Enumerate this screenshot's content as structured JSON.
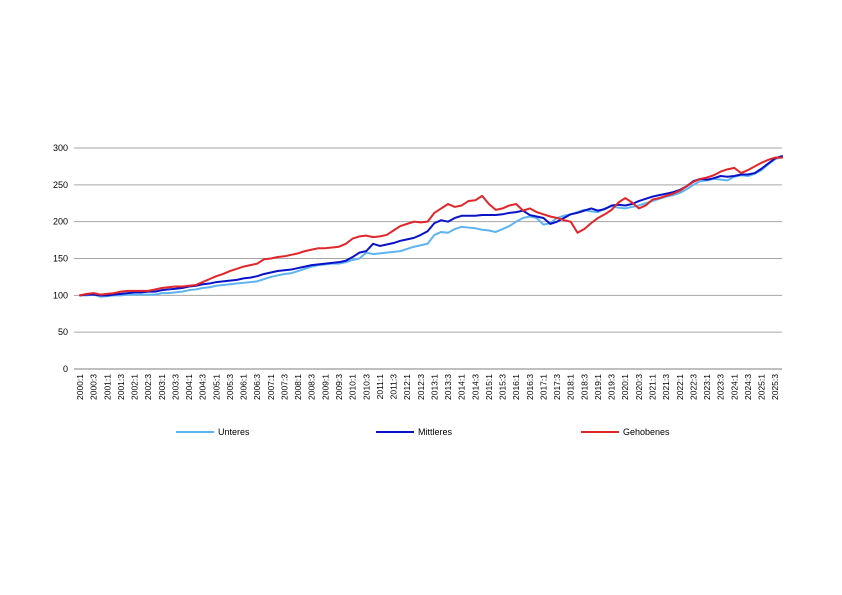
{
  "chart_data": {
    "type": "line",
    "title": "",
    "xlabel": "",
    "ylabel": "",
    "ylim": [
      0,
      300
    ],
    "yticks": [
      0,
      50,
      100,
      150,
      200,
      250,
      300
    ],
    "grid": "horizontal",
    "legend_position": "bottom",
    "x": [
      "2000:1",
      "2000:2",
      "2000:3",
      "2000:4",
      "2001:1",
      "2001:2",
      "2001:3",
      "2001:4",
      "2002:1",
      "2002:2",
      "2002:3",
      "2002:4",
      "2003:1",
      "2003:2",
      "2003:3",
      "2003:4",
      "2004:1",
      "2004:2",
      "2004:3",
      "2004:4",
      "2005:1",
      "2005:2",
      "2005:3",
      "2005:4",
      "2006:1",
      "2006:2",
      "2006:3",
      "2006:4",
      "2007:1",
      "2007:2",
      "2007:3",
      "2007:4",
      "2008:1",
      "2008:2",
      "2008:3",
      "2008:4",
      "2009:1",
      "2009:2",
      "2009:3",
      "2009:4",
      "2010:1",
      "2010:2",
      "2010:3",
      "2010:4",
      "2011:1",
      "2011:2",
      "2011:3",
      "2011:4",
      "2012:1",
      "2012:2",
      "2012:3",
      "2012:4",
      "2013:1",
      "2013:2",
      "2013:3",
      "2013:4",
      "2014:1",
      "2014:2",
      "2014:3",
      "2014:4",
      "2015:1",
      "2015:2",
      "2015:3",
      "2015:4",
      "2016:1",
      "2016:2",
      "2016:3",
      "2016:4",
      "2017:1",
      "2017:2",
      "2017:3",
      "2017:4",
      "2018:1",
      "2018:2",
      "2018:3",
      "2018:4",
      "2019:1",
      "2019:2",
      "2019:3",
      "2019:4",
      "2020:1",
      "2020:2",
      "2020:3",
      "2020:4",
      "2021:1",
      "2021:2",
      "2021:3",
      "2021:4",
      "2022:1",
      "2022:2",
      "2022:3",
      "2022:4",
      "2023:1",
      "2023:2",
      "2023:3",
      "2023:4",
      "2024:1",
      "2024:2",
      "2024:3",
      "2024:4",
      "2025:1",
      "2025:2",
      "2025:3",
      "2025:4"
    ],
    "tick_labels": [
      "2000:1",
      "2000:3",
      "2001:1",
      "2001:3",
      "2002:1",
      "2002:3",
      "2003:1",
      "2003:3",
      "2004:1",
      "2004:3",
      "2005:1",
      "2005:3",
      "2006:1",
      "2006:3",
      "2007:1",
      "2007:3",
      "2008:1",
      "2008:3",
      "2009:1",
      "2009:3",
      "2010:1",
      "2010:3",
      "2011:1",
      "2011:3",
      "2012:1",
      "2012:3",
      "2013:1",
      "2013:3",
      "2014:1",
      "2014:3",
      "2015:1",
      "2015:3",
      "2016:1",
      "2016:3",
      "2017:1",
      "2017:3",
      "2018:1",
      "2018:3",
      "2019:1",
      "2019:3",
      "2020:1",
      "2020:3",
      "2021:1",
      "2021:3",
      "2022:1",
      "2022:3",
      "2023:1",
      "2023:3",
      "2024:1",
      "2024:3",
      "2025:1",
      "2025:3"
    ],
    "series": [
      {
        "name": "Unteres",
        "color": "#5fb4f0",
        "values": [
          100,
          100,
          101,
          98,
          99,
          100,
          100,
          101,
          101,
          101,
          101,
          101,
          103,
          103,
          104,
          105,
          107,
          108,
          110,
          111,
          113,
          114,
          115,
          116,
          117,
          118,
          119,
          122,
          125,
          127,
          129,
          130,
          133,
          136,
          139,
          141,
          142,
          143,
          143,
          145,
          148,
          150,
          158,
          156,
          157,
          158,
          159,
          160,
          163,
          166,
          168,
          170,
          182,
          186,
          185,
          190,
          193,
          192,
          191,
          189,
          188,
          186,
          190,
          194,
          200,
          205,
          207,
          205,
          196,
          198,
          205,
          208,
          210,
          213,
          216,
          214,
          213,
          218,
          221,
          219,
          218,
          220,
          222,
          225,
          228,
          231,
          234,
          236,
          239,
          244,
          250,
          255,
          256,
          258,
          257,
          256,
          261,
          263,
          262,
          265,
          270,
          278,
          285,
          288
        ]
      },
      {
        "name": "Mittleres",
        "color": "#0a12c8",
        "values": [
          100,
          101,
          101,
          100,
          100,
          101,
          102,
          103,
          104,
          104,
          105,
          105,
          107,
          108,
          109,
          110,
          112,
          113,
          115,
          116,
          118,
          119,
          120,
          121,
          123,
          124,
          126,
          129,
          131,
          133,
          134,
          135,
          137,
          139,
          141,
          142,
          143,
          144,
          145,
          147,
          152,
          158,
          160,
          170,
          167,
          169,
          171,
          174,
          176,
          178,
          182,
          187,
          198,
          202,
          200,
          205,
          208,
          208,
          208,
          209,
          209,
          209,
          210,
          212,
          213,
          215,
          209,
          207,
          205,
          197,
          200,
          205,
          210,
          212,
          215,
          218,
          215,
          217,
          222,
          223,
          222,
          224,
          228,
          231,
          234,
          236,
          238,
          240,
          243,
          248,
          255,
          258,
          257,
          259,
          262,
          261,
          262,
          264,
          264,
          266,
          272,
          279,
          286,
          289
        ]
      },
      {
        "name": "Gehobenes",
        "color": "#e0262a",
        "values": [
          100,
          102,
          103,
          101,
          102,
          103,
          105,
          106,
          106,
          106,
          106,
          108,
          110,
          111,
          112,
          112,
          113,
          114,
          118,
          122,
          126,
          129,
          133,
          136,
          139,
          141,
          143,
          149,
          150,
          152,
          153,
          155,
          157,
          160,
          162,
          164,
          164,
          165,
          166,
          170,
          177,
          180,
          181,
          179,
          180,
          182,
          188,
          194,
          197,
          200,
          199,
          200,
          212,
          218,
          224,
          220,
          222,
          228,
          229,
          235,
          224,
          216,
          218,
          222,
          224,
          215,
          218,
          213,
          210,
          207,
          205,
          202,
          200,
          185,
          190,
          198,
          205,
          210,
          216,
          226,
          232,
          226,
          218,
          222,
          230,
          232,
          235,
          238,
          242,
          248,
          254,
          258,
          260,
          263,
          268,
          271,
          273,
          266,
          270,
          275,
          280,
          284,
          287,
          287
        ]
      }
    ]
  }
}
